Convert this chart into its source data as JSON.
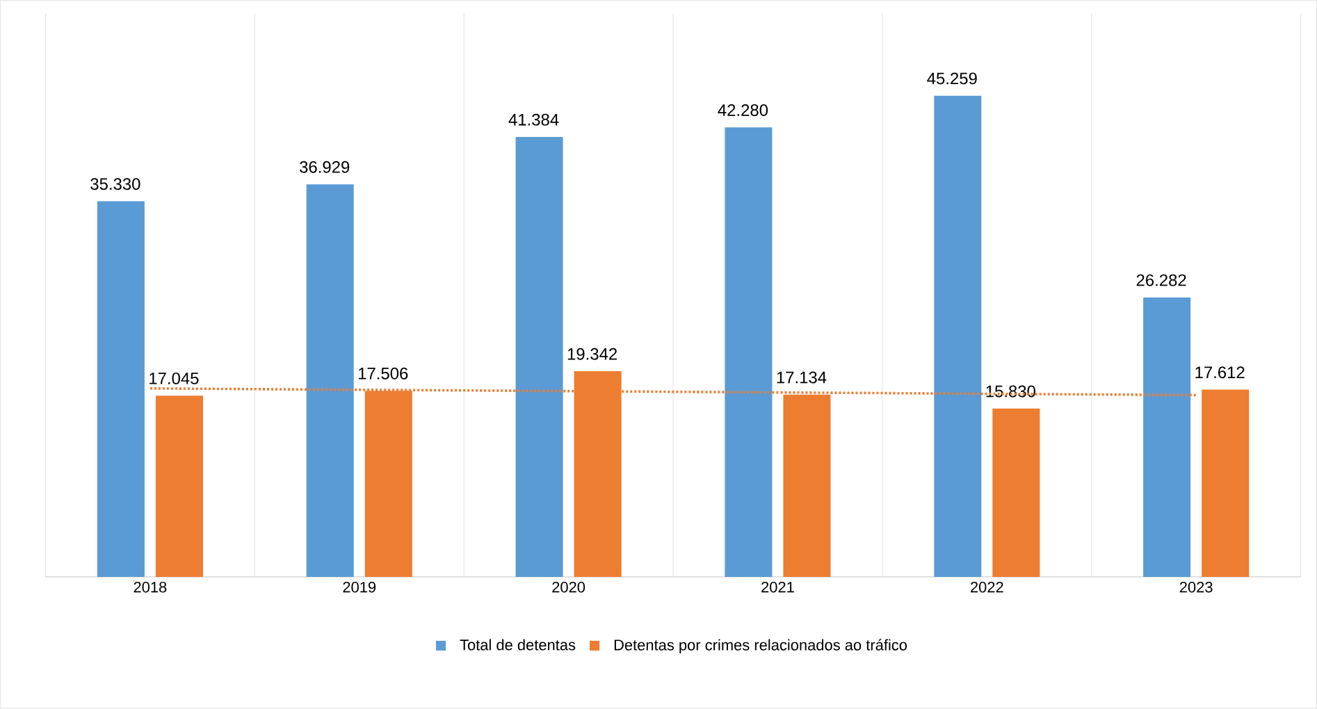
{
  "chart_data": {
    "type": "bar",
    "categories": [
      "2018",
      "2019",
      "2020",
      "2021",
      "2022",
      "2023"
    ],
    "series": [
      {
        "name": "Total de detentas",
        "color": "#5b9bd5",
        "values": [
          35330,
          36929,
          41384,
          42280,
          45259,
          26282
        ],
        "value_labels": [
          "35.330",
          "36.929",
          "41.384",
          "42.280",
          "45.259",
          "26.282"
        ]
      },
      {
        "name": "Detentas por crimes relacionados ao tráfico",
        "color": "#ed7d31",
        "values": [
          17045,
          17506,
          19342,
          17134,
          15830,
          17612
        ],
        "value_labels": [
          "17.045",
          "17.506",
          "19.342",
          "17.134",
          "15.830",
          "17.612"
        ]
      },
      {
        "type": "line",
        "color": "#ed7d31",
        "line_style": "dotted",
        "values": [
          17726,
          17600,
          17474,
          17348,
          17223,
          17097
        ]
      }
    ],
    "ylim": [
      0,
      53000
    ],
    "tick_labels": "x",
    "grid": "x",
    "legend": "bottom"
  }
}
